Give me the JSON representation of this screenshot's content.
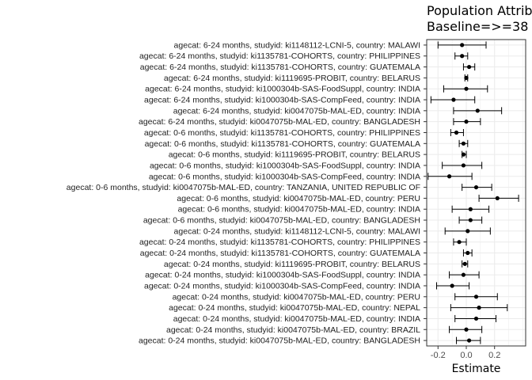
{
  "chart_data": {
    "type": "forest",
    "title": "Population Attrib",
    "subtitle": "Baseline=>=38",
    "xlabel": "Estimate",
    "ylabel": "",
    "xticks": [
      -0.2,
      0.0,
      0.2
    ],
    "xlim": [
      -0.28,
      0.42
    ],
    "grid": true,
    "rows": [
      {
        "label": "agecat: 6-24 months, studyid: ki1148112-LCNI-5, country: MALAWI",
        "estimate": -0.03,
        "lower": -0.2,
        "upper": 0.14
      },
      {
        "label": "agecat: 6-24 months, studyid: ki1135781-COHORTS, country: PHILIPPINES",
        "estimate": -0.03,
        "lower": -0.08,
        "upper": 0.01
      },
      {
        "label": "agecat: 6-24 months, studyid: ki1135781-COHORTS, country: GUATEMALA",
        "estimate": 0.02,
        "lower": -0.02,
        "upper": 0.06
      },
      {
        "label": "agecat: 6-24 months, studyid: ki1119695-PROBIT, country: BELARUS",
        "estimate": 0.0,
        "lower": -0.01,
        "upper": 0.01
      },
      {
        "label": "agecat: 6-24 months, studyid: ki1000304b-SAS-FoodSuppl, country: INDIA",
        "estimate": 0.0,
        "lower": -0.16,
        "upper": 0.15
      },
      {
        "label": "agecat: 6-24 months, studyid: ki1000304b-SAS-CompFeed, country: INDIA",
        "estimate": -0.09,
        "lower": -0.25,
        "upper": 0.06
      },
      {
        "label": "agecat: 6-24 months, studyid: ki0047075b-MAL-ED, country: INDIA",
        "estimate": 0.08,
        "lower": -0.09,
        "upper": 0.25
      },
      {
        "label": "agecat: 6-24 months, studyid: ki0047075b-MAL-ED, country: BANGLADESH",
        "estimate": 0.0,
        "lower": -0.09,
        "upper": 0.1
      },
      {
        "label": "agecat: 0-6 months, studyid: ki1135781-COHORTS, country: PHILIPPINES",
        "estimate": -0.07,
        "lower": -0.11,
        "upper": -0.02
      },
      {
        "label": "agecat: 0-6 months, studyid: ki1135781-COHORTS, country: GUATEMALA",
        "estimate": -0.02,
        "lower": -0.05,
        "upper": 0.01
      },
      {
        "label": "agecat: 0-6 months, studyid: ki1119695-PROBIT, country: BELARUS",
        "estimate": -0.02,
        "lower": -0.03,
        "upper": 0.0
      },
      {
        "label": "agecat: 0-6 months, studyid: ki1000304b-SAS-FoodSuppl, country: INDIA",
        "estimate": -0.02,
        "lower": -0.17,
        "upper": 0.11
      },
      {
        "label": "agecat: 0-6 months, studyid: ki1000304b-SAS-CompFeed, country: INDIA",
        "estimate": -0.12,
        "lower": -0.27,
        "upper": 0.04
      },
      {
        "label": "agecat: 0-6 months, studyid: ki0047075b-MAL-ED, country: TANZANIA, UNITED REPUBLIC OF",
        "estimate": 0.07,
        "lower": -0.03,
        "upper": 0.18
      },
      {
        "label": "agecat: 0-6 months, studyid: ki0047075b-MAL-ED, country: PERU",
        "estimate": 0.22,
        "lower": 0.09,
        "upper": 0.37
      },
      {
        "label": "agecat: 0-6 months, studyid: ki0047075b-MAL-ED, country: INDIA",
        "estimate": 0.03,
        "lower": -0.1,
        "upper": 0.16
      },
      {
        "label": "agecat: 0-6 months, studyid: ki0047075b-MAL-ED, country: BANGLADESH",
        "estimate": 0.03,
        "lower": -0.05,
        "upper": 0.11
      },
      {
        "label": "agecat: 0-24 months, studyid: ki1148112-LCNI-5, country: MALAWI",
        "estimate": 0.01,
        "lower": -0.15,
        "upper": 0.17
      },
      {
        "label": "agecat: 0-24 months, studyid: ki1135781-COHORTS, country: PHILIPPINES",
        "estimate": -0.05,
        "lower": -0.09,
        "upper": 0.0
      },
      {
        "label": "agecat: 0-24 months, studyid: ki1135781-COHORTS, country: GUATEMALA",
        "estimate": 0.01,
        "lower": -0.02,
        "upper": 0.04
      },
      {
        "label": "agecat: 0-24 months, studyid: ki1119695-PROBIT, country: BELARUS",
        "estimate": -0.01,
        "lower": -0.03,
        "upper": 0.01
      },
      {
        "label": "agecat: 0-24 months, studyid: ki1000304b-SAS-FoodSuppl, country: INDIA",
        "estimate": -0.02,
        "lower": -0.12,
        "upper": 0.09
      },
      {
        "label": "agecat: 0-24 months, studyid: ki1000304b-SAS-CompFeed, country: INDIA",
        "estimate": -0.1,
        "lower": -0.21,
        "upper": 0.02
      },
      {
        "label": "agecat: 0-24 months, studyid: ki0047075b-MAL-ED, country: PERU",
        "estimate": 0.07,
        "lower": -0.08,
        "upper": 0.22
      },
      {
        "label": "agecat: 0-24 months, studyid: ki0047075b-MAL-ED, country: NEPAL",
        "estimate": 0.09,
        "lower": -0.11,
        "upper": 0.29
      },
      {
        "label": "agecat: 0-24 months, studyid: ki0047075b-MAL-ED, country: INDIA",
        "estimate": 0.07,
        "lower": -0.08,
        "upper": 0.21
      },
      {
        "label": "agecat: 0-24 months, studyid: ki0047075b-MAL-ED, country: BRAZIL",
        "estimate": 0.0,
        "lower": -0.12,
        "upper": 0.11
      },
      {
        "label": "agecat: 0-24 months, studyid: ki0047075b-MAL-ED, country: BANGLADESH",
        "estimate": 0.02,
        "lower": -0.07,
        "upper": 0.1
      }
    ]
  }
}
